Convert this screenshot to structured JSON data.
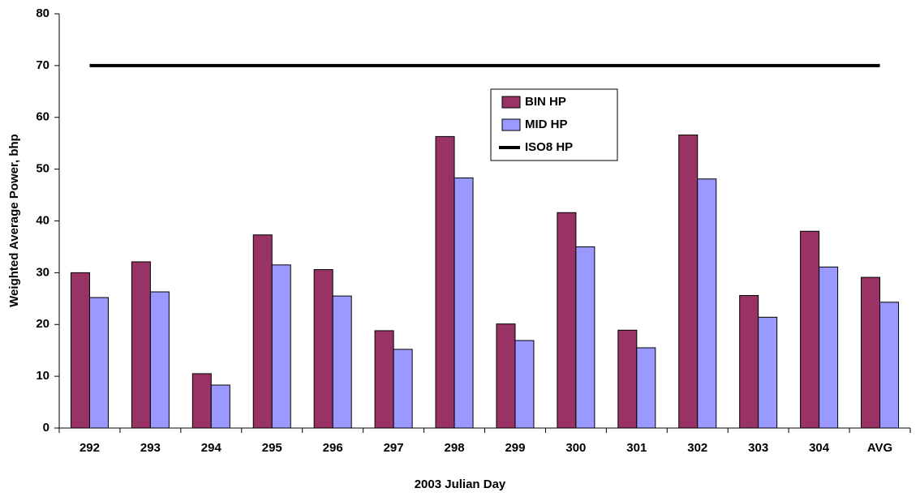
{
  "chart_data": {
    "type": "bar",
    "xlabel": "2003 Julian Day",
    "ylabel": "Weighted Average Power, bhp",
    "categories": [
      "292",
      "293",
      "294",
      "295",
      "296",
      "297",
      "298",
      "299",
      "300",
      "301",
      "302",
      "303",
      "304",
      "AVG"
    ],
    "series": [
      {
        "name": "BIN HP",
        "color": "#993366",
        "type": "bar",
        "values": [
          30.0,
          32.1,
          10.5,
          37.3,
          30.6,
          18.8,
          56.3,
          20.1,
          41.6,
          18.9,
          56.6,
          25.6,
          38.0,
          29.1
        ]
      },
      {
        "name": "MID HP",
        "color": "#9999ff",
        "type": "bar",
        "values": [
          25.2,
          26.3,
          8.3,
          31.5,
          25.5,
          15.2,
          48.3,
          16.9,
          35.0,
          15.5,
          48.1,
          21.4,
          31.1,
          24.3
        ]
      },
      {
        "name": "ISO8 HP",
        "color": "#000000",
        "type": "line",
        "values": [
          70,
          70,
          70,
          70,
          70,
          70,
          70,
          70,
          70,
          70,
          70,
          70,
          70,
          70
        ]
      }
    ],
    "ylim": [
      0,
      80
    ],
    "yticks": [
      0,
      10,
      20,
      30,
      40,
      50,
      60,
      70,
      80
    ],
    "grid": false,
    "legend": "top-center"
  }
}
